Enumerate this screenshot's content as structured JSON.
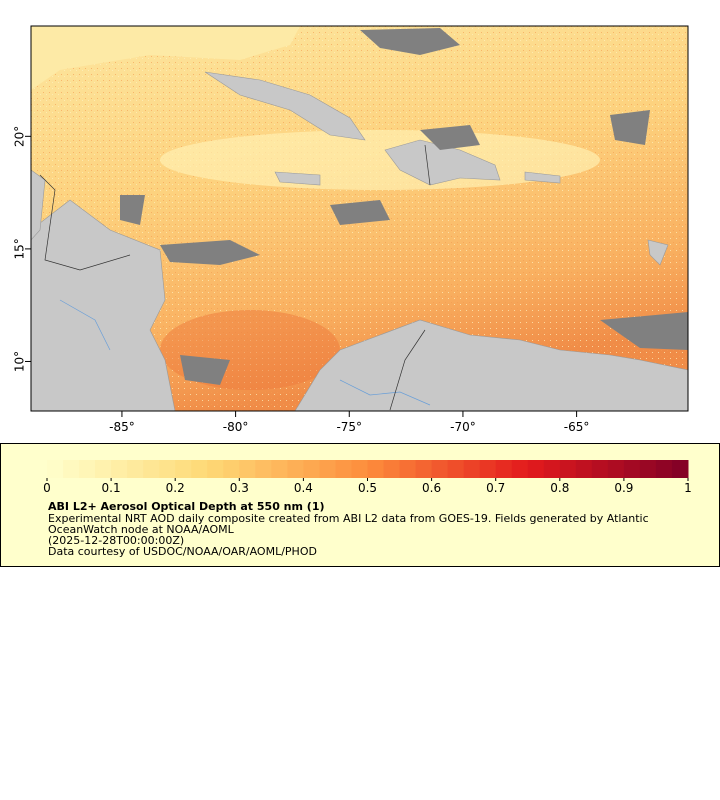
{
  "map": {
    "xlim": [
      -89,
      -60.1
    ],
    "ylim": [
      7.8,
      24.9
    ],
    "xticks": [
      {
        "value": -85,
        "label": "-85°"
      },
      {
        "value": -80,
        "label": "-80°"
      },
      {
        "value": -75,
        "label": "-75°"
      },
      {
        "value": -70,
        "label": "-70°"
      },
      {
        "value": -65,
        "label": "-65°"
      }
    ],
    "yticks": [
      {
        "value": 10,
        "label": "10°"
      },
      {
        "value": 15,
        "label": "15°"
      },
      {
        "value": 20,
        "label": "20°"
      }
    ]
  },
  "colorbar": {
    "clim": [
      0,
      1
    ],
    "ticks": [
      0,
      0.1,
      0.2,
      0.3,
      0.4,
      0.5,
      0.6,
      0.7,
      0.8,
      0.9,
      1
    ]
  },
  "legend": {
    "title": "ABI L2+ Aerosol Optical Depth at 550 nm (1)",
    "lines": [
      "Experimental NRT AOD daily composite created from ABI L2 data from GOES-19. Fields generated by Atlantic",
      "OceanWatch node at NOAA/AOML",
      "(2025-12-28T00:00:00Z)",
      "Data courtesy of USDOC/NOAA/OAR/AOML/PHOD"
    ]
  }
}
